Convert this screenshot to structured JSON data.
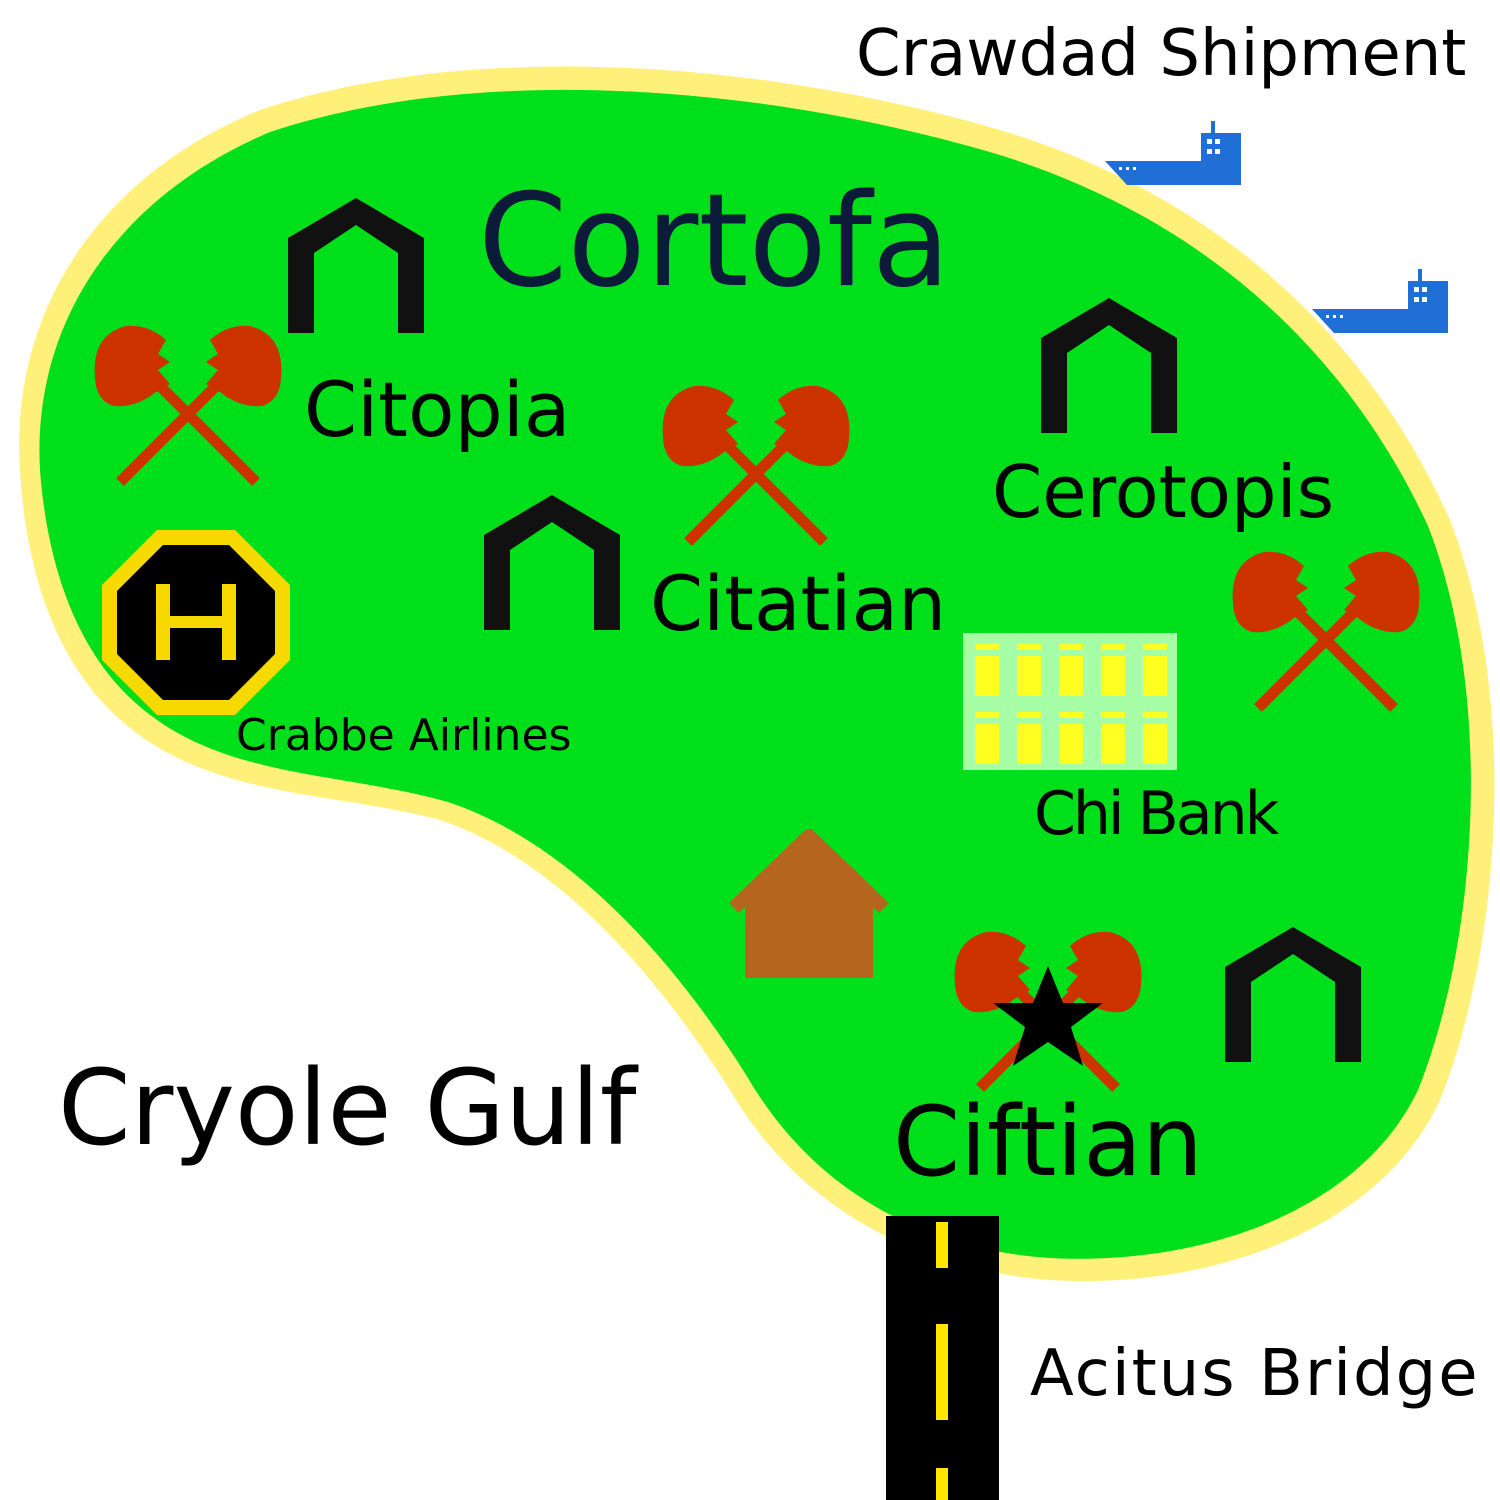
{
  "map": {
    "colors": {
      "land": "#00e01a",
      "coast": "#fff07a",
      "water": "#ffffff",
      "city_icon": "#111111",
      "axes": "#cc3300",
      "ship": "#1f6fd6",
      "airport": "#f7d900",
      "bank_building": "#a6ffa6",
      "bank_windows": "#ffff22",
      "house": "#b5651d",
      "road": "#000000",
      "road_line": "#ffe600"
    },
    "labels": {
      "capital": "Cortofa",
      "city_citopia": "Citopia",
      "city_citatian": "Citatian",
      "city_cerotopis": "Cerotopis",
      "city_ciftian": "Ciftian",
      "airport": "Crabbe Airlines",
      "bank": "Chi Bank",
      "shipment": "Crawdad Shipment",
      "gulf": "Cryole Gulf",
      "bridge": "Acitus Bridge"
    },
    "icons": {
      "city": "city-arch-icon",
      "battle": "crossed-axes-icon",
      "capital_marker": "star-icon",
      "airport": "helipad-icon",
      "bank": "bank-building-icon",
      "house": "house-icon",
      "ship": "ship-icon"
    }
  }
}
